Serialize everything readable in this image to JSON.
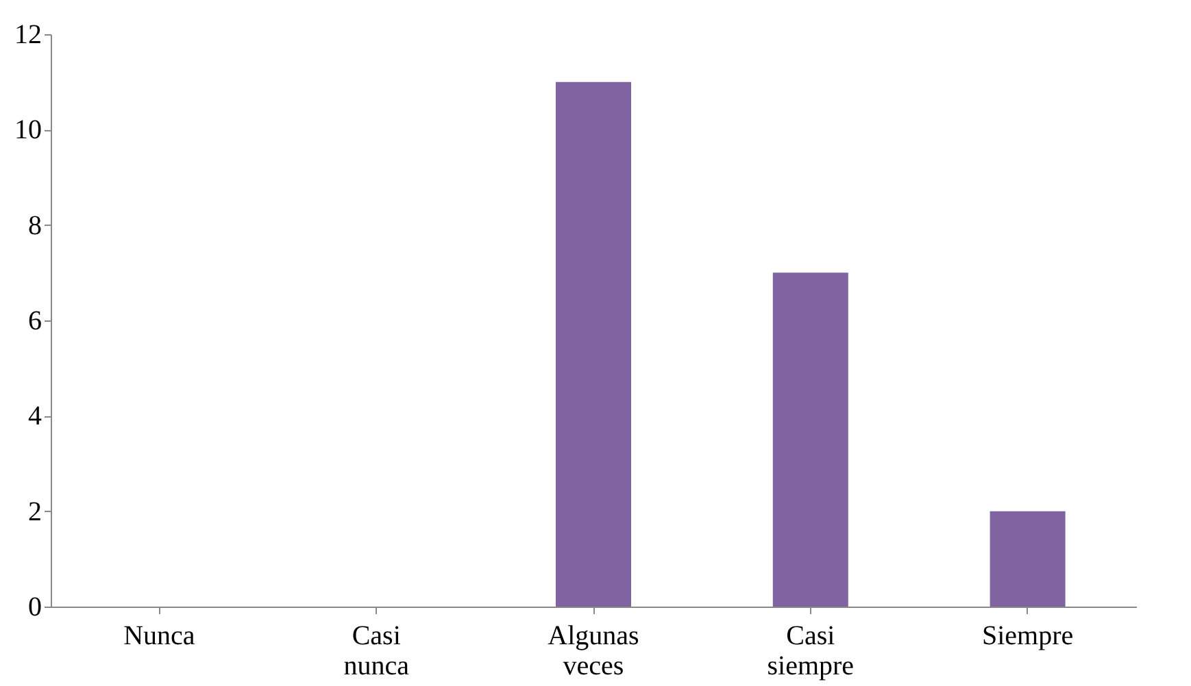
{
  "chart_data": {
    "type": "bar",
    "categories": [
      "Nunca",
      "Casi nunca",
      "Algunas veces",
      "Casi siempre",
      "Siempre"
    ],
    "values": [
      0,
      0,
      11,
      7,
      2
    ],
    "color": "#8064a2",
    "ylim": [
      0,
      12
    ],
    "yticks": [
      0,
      2,
      4,
      6,
      8,
      10,
      12
    ],
    "grid": false
  }
}
